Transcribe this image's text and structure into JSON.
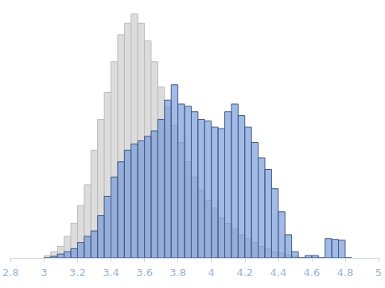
{
  "chart_data": {
    "type": "histogram",
    "bins": [
      3.0,
      3.04,
      3.08,
      3.12,
      3.16,
      3.2,
      3.24,
      3.28,
      3.32,
      3.36,
      3.4,
      3.44,
      3.48,
      3.52,
      3.56,
      3.6,
      3.64,
      3.68,
      3.72,
      3.76,
      3.8,
      3.84,
      3.88,
      3.92,
      3.96,
      4.0,
      4.04,
      4.08,
      4.12,
      4.16,
      4.2,
      4.24,
      4.28,
      4.32,
      4.36,
      4.4,
      4.44,
      4.48,
      4.52,
      4.56,
      4.6,
      4.64,
      4.68,
      4.72,
      4.76,
      4.8,
      4.84
    ],
    "series": [
      {
        "color": "#dcdcdc",
        "values": [
          3,
          8,
          15,
          28,
          45,
          68,
          95,
          140,
          180,
          215,
          255,
          290,
          305,
          317,
          305,
          282,
          255,
          222,
          195,
          172,
          150,
          125,
          105,
          88,
          75,
          65,
          52,
          45,
          38,
          30,
          25,
          20,
          15,
          12,
          8,
          6,
          4,
          2,
          0,
          0,
          0,
          0,
          0,
          0,
          0,
          0
        ]
      },
      {
        "color": "#6f95d8",
        "values": [
          0,
          2,
          5,
          8,
          12,
          20,
          28,
          35,
          55,
          80,
          105,
          125,
          140,
          148,
          152,
          158,
          165,
          180,
          205,
          225,
          200,
          197,
          190,
          180,
          178,
          170,
          168,
          190,
          200,
          185,
          170,
          150,
          130,
          115,
          90,
          60,
          30,
          8,
          0,
          3,
          3,
          0,
          25,
          24,
          23,
          0
        ]
      }
    ],
    "xlim": [
      2.8,
      5
    ],
    "xticks": [
      2.8,
      3,
      3.2,
      3.4,
      3.6,
      3.8,
      4,
      4.2,
      4.4,
      4.6,
      4.8,
      5
    ],
    "ylim": [
      0,
      330
    ],
    "grid": false,
    "tick_labels": "x"
  }
}
